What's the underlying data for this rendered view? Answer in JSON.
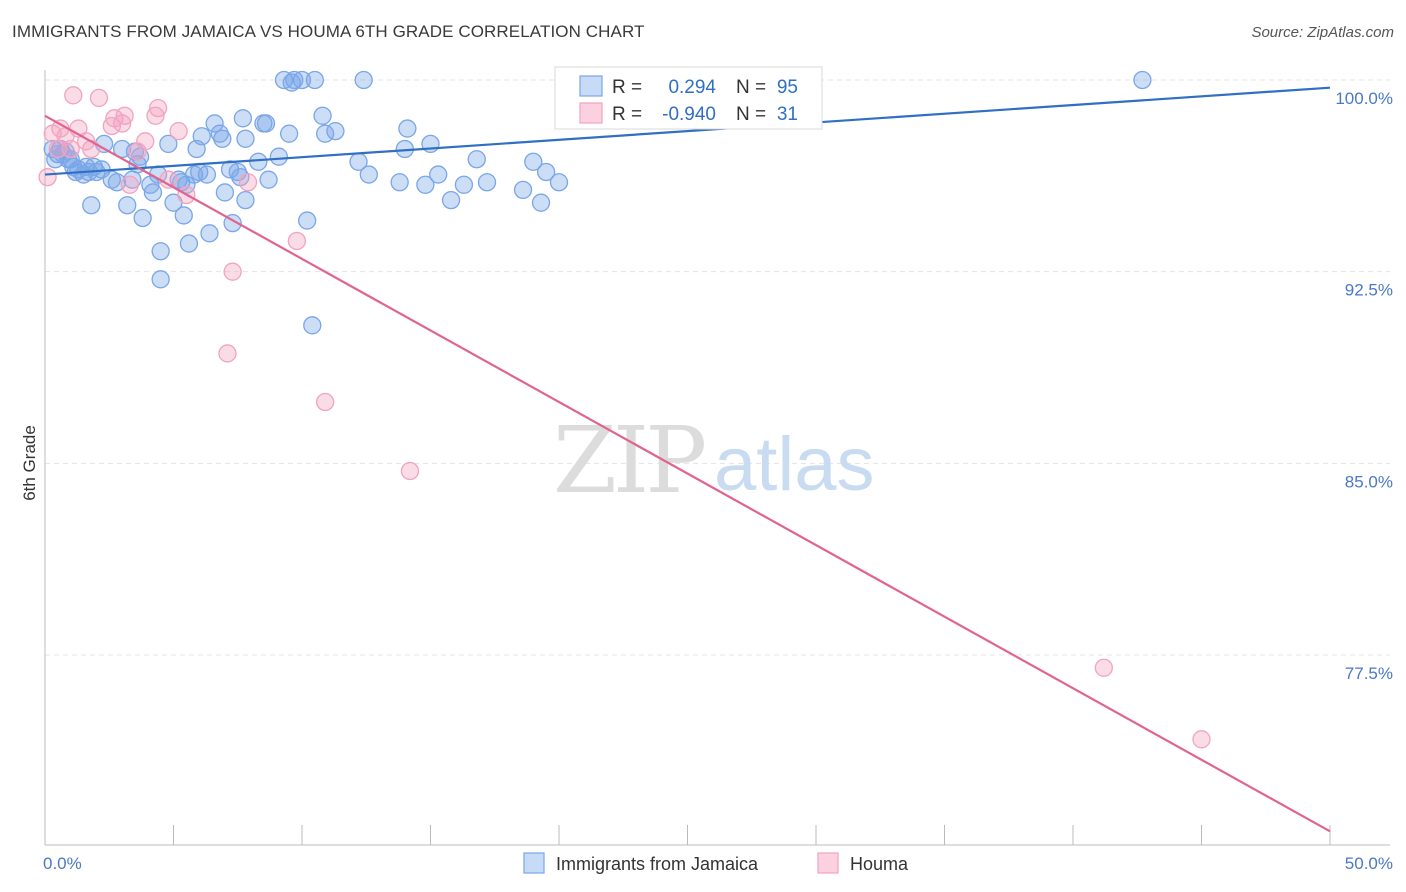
{
  "title": "IMMIGRANTS FROM JAMAICA VS HOUMA 6TH GRADE CORRELATION CHART",
  "source": "Source: ZipAtlas.com",
  "watermark": {
    "zip": "ZIP",
    "atlas": "atlas"
  },
  "colors": {
    "blue": "#7aa6e8",
    "blue_line": "#2f6fc4",
    "pink": "#f2a3bf",
    "pink_line": "#e0648f",
    "tick_text": "#4a78c6",
    "grid": "#e4e4e4"
  },
  "legend": {
    "r_label": "R =",
    "n_label": "N =",
    "rows": [
      {
        "r": "0.294",
        "n": "95",
        "series": "blue"
      },
      {
        "r": "-0.940",
        "n": "31",
        "series": "pink"
      }
    ]
  },
  "chart_data": {
    "type": "scatter",
    "title": "IMMIGRANTS FROM JAMAICA VS HOUMA 6TH GRADE CORRELATION CHART",
    "xlabel": "",
    "ylabel": "6th Grade",
    "xlim": [
      0,
      50
    ],
    "ylim": [
      70.0,
      101.0
    ],
    "x_tick_labels": [
      "0.0%",
      "50.0%"
    ],
    "y_ticks": [
      77.5,
      85.0,
      92.5,
      100.0
    ],
    "y_tick_labels": [
      "77.5%",
      "85.0%",
      "92.5%",
      "100.0%"
    ],
    "grid": true,
    "legend_position": "top-center",
    "series": [
      {
        "name": "Immigrants from Jamaica",
        "color": "#7aa6e8",
        "trend": {
          "x": [
            0,
            50
          ],
          "y": [
            96.3,
            99.7
          ]
        },
        "points": [
          [
            0.3,
            97.3
          ],
          [
            0.5,
            97.1
          ],
          [
            0.6,
            97.3
          ],
          [
            0.7,
            97.1
          ],
          [
            0.8,
            97.2
          ],
          [
            0.9,
            96.9
          ],
          [
            1.0,
            96.9
          ],
          [
            1.1,
            96.6
          ],
          [
            1.2,
            96.4
          ],
          [
            1.3,
            96.5
          ],
          [
            1.5,
            96.3
          ],
          [
            1.6,
            96.6
          ],
          [
            1.7,
            96.4
          ],
          [
            1.8,
            95.1
          ],
          [
            1.9,
            96.6
          ],
          [
            2.2,
            96.5
          ],
          [
            2.3,
            97.5
          ],
          [
            2.6,
            96.1
          ],
          [
            2.8,
            96.0
          ],
          [
            3.0,
            97.3
          ],
          [
            3.2,
            95.1
          ],
          [
            3.4,
            96.1
          ],
          [
            3.5,
            97.2
          ],
          [
            3.6,
            96.7
          ],
          [
            3.7,
            97.0
          ],
          [
            3.8,
            94.6
          ],
          [
            4.1,
            95.9
          ],
          [
            4.2,
            95.6
          ],
          [
            4.4,
            96.3
          ],
          [
            4.5,
            92.2
          ],
          [
            4.5,
            93.3
          ],
          [
            4.8,
            97.5
          ],
          [
            5.0,
            95.2
          ],
          [
            5.2,
            96.1
          ],
          [
            5.3,
            96.0
          ],
          [
            5.4,
            94.7
          ],
          [
            5.5,
            95.9
          ],
          [
            5.6,
            93.6
          ],
          [
            5.8,
            96.3
          ],
          [
            5.9,
            97.3
          ],
          [
            6.0,
            96.4
          ],
          [
            6.1,
            97.8
          ],
          [
            6.3,
            96.3
          ],
          [
            6.4,
            94.0
          ],
          [
            6.6,
            98.3
          ],
          [
            6.8,
            97.9
          ],
          [
            6.9,
            97.7
          ],
          [
            7.0,
            95.6
          ],
          [
            7.2,
            96.5
          ],
          [
            7.3,
            94.4
          ],
          [
            7.5,
            96.4
          ],
          [
            7.6,
            96.2
          ],
          [
            7.7,
            98.5
          ],
          [
            7.8,
            95.3
          ],
          [
            7.8,
            97.7
          ],
          [
            8.3,
            96.8
          ],
          [
            8.5,
            98.3
          ],
          [
            8.6,
            98.3
          ],
          [
            8.7,
            96.1
          ],
          [
            9.1,
            97.0
          ],
          [
            9.3,
            100.0
          ],
          [
            9.5,
            97.9
          ],
          [
            9.6,
            99.9
          ],
          [
            9.7,
            100.0
          ],
          [
            10.0,
            100.0
          ],
          [
            10.2,
            94.5
          ],
          [
            10.4,
            90.4
          ],
          [
            10.5,
            100.0
          ],
          [
            10.8,
            98.6
          ],
          [
            10.9,
            97.9
          ],
          [
            11.3,
            98.0
          ],
          [
            12.2,
            96.8
          ],
          [
            12.4,
            100.0
          ],
          [
            12.6,
            96.3
          ],
          [
            13.8,
            96.0
          ],
          [
            14.0,
            97.3
          ],
          [
            14.1,
            98.1
          ],
          [
            14.8,
            95.9
          ],
          [
            15.0,
            97.5
          ],
          [
            15.3,
            96.3
          ],
          [
            15.8,
            95.3
          ],
          [
            16.3,
            95.9
          ],
          [
            16.8,
            96.9
          ],
          [
            17.2,
            96.0
          ],
          [
            18.6,
            95.7
          ],
          [
            19.0,
            96.8
          ],
          [
            19.3,
            95.2
          ],
          [
            19.5,
            96.4
          ],
          [
            20.0,
            96.0
          ],
          [
            20.5,
            100.0
          ],
          [
            25.5,
            100.0
          ],
          [
            25.9,
            99.6
          ],
          [
            42.7,
            100.0
          ],
          [
            0.4,
            96.9
          ],
          [
            2.0,
            96.4
          ]
        ]
      },
      {
        "name": "Houma",
        "color": "#f2a3bf",
        "trend": {
          "x": [
            0,
            50
          ],
          "y": [
            98.6,
            70.6
          ]
        },
        "points": [
          [
            0.1,
            96.2
          ],
          [
            0.3,
            97.9
          ],
          [
            0.5,
            97.3
          ],
          [
            0.6,
            98.1
          ],
          [
            0.8,
            97.8
          ],
          [
            1.0,
            97.3
          ],
          [
            1.1,
            99.4
          ],
          [
            1.3,
            98.1
          ],
          [
            1.6,
            97.6
          ],
          [
            1.8,
            97.3
          ],
          [
            2.1,
            99.3
          ],
          [
            2.6,
            98.2
          ],
          [
            2.7,
            98.5
          ],
          [
            3.0,
            98.3
          ],
          [
            3.1,
            98.6
          ],
          [
            3.3,
            95.9
          ],
          [
            3.6,
            97.2
          ],
          [
            3.9,
            97.6
          ],
          [
            4.3,
            98.6
          ],
          [
            4.4,
            98.9
          ],
          [
            4.8,
            96.1
          ],
          [
            5.2,
            98.0
          ],
          [
            5.5,
            95.5
          ],
          [
            7.1,
            89.3
          ],
          [
            7.3,
            92.5
          ],
          [
            7.9,
            96.0
          ],
          [
            9.8,
            93.7
          ],
          [
            10.9,
            87.4
          ],
          [
            14.2,
            84.7
          ],
          [
            41.2,
            77.0
          ],
          [
            45.0,
            74.2
          ]
        ]
      }
    ]
  }
}
